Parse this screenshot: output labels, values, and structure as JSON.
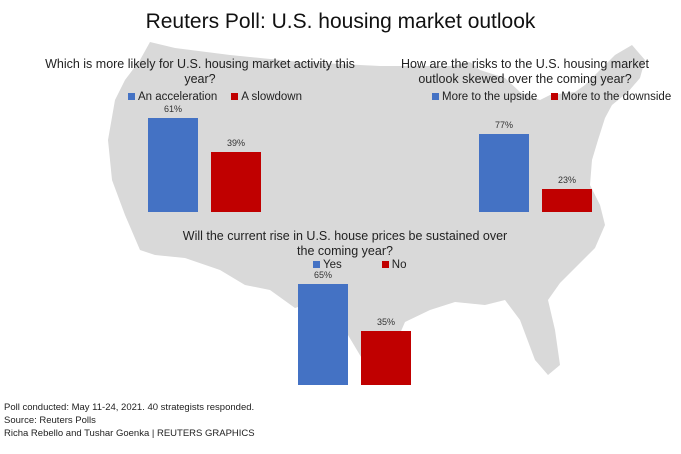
{
  "title": "Reuters Poll: U.S. housing market outlook",
  "colors": {
    "blue": "#4472c4",
    "red": "#c00000",
    "map": "#d9d9d9"
  },
  "chart_data": [
    {
      "type": "bar",
      "title": "Which is more likely for U.S. housing market activity this year?",
      "categories": [
        "An acceleration",
        "A slowdown"
      ],
      "values": [
        61,
        39
      ],
      "labels": [
        "61%",
        "39%"
      ]
    },
    {
      "type": "bar",
      "title": "How are the risks to the U.S. housing market outlook skewed over the coming year?",
      "categories": [
        "More to the upside",
        "More to the downside"
      ],
      "values": [
        77,
        23
      ],
      "labels": [
        "77%",
        "23%"
      ]
    },
    {
      "type": "bar",
      "title": "Will the current rise in U.S. house prices be sustained over the coming year?",
      "categories": [
        "Yes",
        "No"
      ],
      "values": [
        65,
        35
      ],
      "labels": [
        "65%",
        "35%"
      ]
    }
  ],
  "footer": [
    "Poll conducted: May 11-24, 2021. 40 strategists responded.",
    "Source: Reuters Polls",
    "Richa Rebello and Tushar Goenka | REUTERS GRAPHICS"
  ]
}
